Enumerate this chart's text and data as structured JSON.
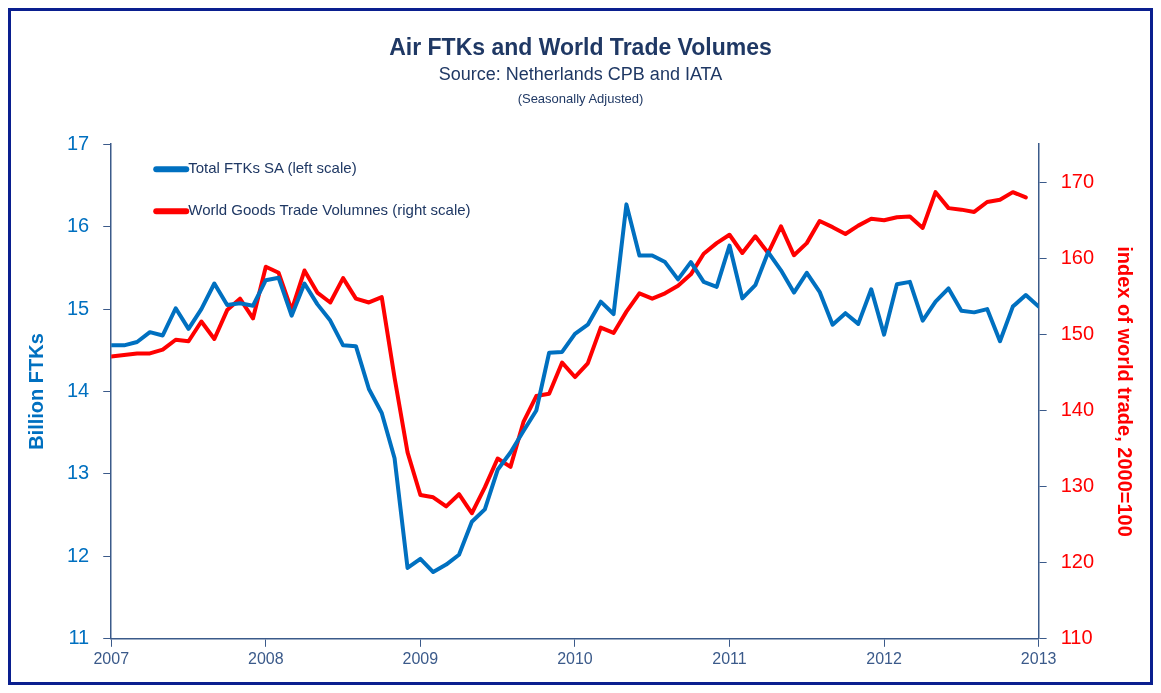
{
  "chart_data": {
    "type": "line",
    "title": "Air FTKs and World Trade Volumes",
    "subtitle": "Source: Netherlands CPB and IATA",
    "annotations": [
      "(Seasonally Adjusted)"
    ],
    "ylabel": "Billion FTKs",
    "y2label": "index of world trade, 2000=100",
    "x": [
      2007,
      2007.083,
      2007.167,
      2007.25,
      2007.333,
      2007.417,
      2007.5,
      2007.583,
      2007.667,
      2007.75,
      2007.833,
      2007.917,
      2008,
      2008.083,
      2008.167,
      2008.25,
      2008.333,
      2008.417,
      2008.5,
      2008.583,
      2008.667,
      2008.75,
      2008.833,
      2008.917,
      2009,
      2009.083,
      2009.167,
      2009.25,
      2009.333,
      2009.417,
      2009.5,
      2009.583,
      2009.667,
      2009.75,
      2009.833,
      2009.917,
      2010,
      2010.083,
      2010.167,
      2010.25,
      2010.333,
      2010.417,
      2010.5,
      2010.583,
      2010.667,
      2010.75,
      2010.833,
      2010.917,
      2011,
      2011.083,
      2011.167,
      2011.25,
      2011.333,
      2011.417,
      2011.5,
      2011.583,
      2011.667,
      2011.75,
      2011.833,
      2011.917,
      2012,
      2012.083,
      2012.167,
      2012.25,
      2012.333,
      2012.417,
      2012.5,
      2012.583,
      2012.667,
      2012.75,
      2012.833,
      2012.917,
      2013
    ],
    "series": [
      {
        "name": "Total FTKs SA (left scale)",
        "color": "#0070c0",
        "values": [
          14.56,
          14.56,
          14.6,
          14.72,
          14.68,
          15.01,
          14.76,
          15.0,
          15.31,
          15.05,
          15.07,
          15.04,
          15.35,
          15.38,
          14.92,
          15.31,
          15.06,
          14.86,
          14.56,
          14.55,
          14.03,
          13.74,
          13.19,
          11.86,
          11.97,
          11.81,
          11.9,
          12.02,
          12.42,
          12.57,
          13.05,
          13.26,
          13.52,
          13.77,
          14.47,
          14.48,
          14.7,
          14.81,
          15.09,
          14.94,
          16.27,
          15.65,
          15.65,
          15.57,
          15.36,
          15.57,
          15.33,
          15.27,
          15.77,
          15.13,
          15.29,
          15.69,
          15.47,
          15.2,
          15.44,
          15.21,
          14.81,
          14.95,
          14.82,
          15.24,
          14.69,
          15.3,
          15.33,
          14.86,
          15.09,
          15.25,
          14.98,
          14.96,
          15.0,
          14.61,
          15.03,
          15.17,
          15.03
        ]
      },
      {
        "name": "World Goods Trade Volumnes (right scale)",
        "color": "#ff0000",
        "axis": "y2",
        "values": [
          147.1,
          147.3,
          147.5,
          147.5,
          148.0,
          149.3,
          149.1,
          151.7,
          149.4,
          153.2,
          154.7,
          152.1,
          158.9,
          158.1,
          153.2,
          158.4,
          155.5,
          154.2,
          157.4,
          154.7,
          154.2,
          154.9,
          144.3,
          134.5,
          128.9,
          128.6,
          127.4,
          129.0,
          126.5,
          129.9,
          133.7,
          132.6,
          138.5,
          141.9,
          142.2,
          146.3,
          144.4,
          146.2,
          150.9,
          150.2,
          153.0,
          155.4,
          154.7,
          155.4,
          156.4,
          157.9,
          160.6,
          162.0,
          163.1,
          160.7,
          162.9,
          160.7,
          164.2,
          160.4,
          162.0,
          164.9,
          164.1,
          163.2,
          164.3,
          165.2,
          165.0,
          165.4,
          165.5,
          164.0,
          168.7,
          166.6,
          166.4,
          166.1,
          167.4,
          167.7,
          168.7,
          168.0,
          null
        ]
      }
    ],
    "xlim": [
      2007,
      2013
    ],
    "xticks": [
      2007,
      2008,
      2009,
      2010,
      2011,
      2012,
      2013
    ],
    "ylim": [
      11,
      17
    ],
    "yticks": [
      11,
      12,
      13,
      14,
      15,
      16,
      17
    ],
    "y2lim": [
      110,
      175
    ],
    "y2ticks": [
      110,
      120,
      130,
      140,
      150,
      160,
      170
    ],
    "grid": false,
    "legend": "top left",
    "marker": "none",
    "line_style": "solid"
  }
}
